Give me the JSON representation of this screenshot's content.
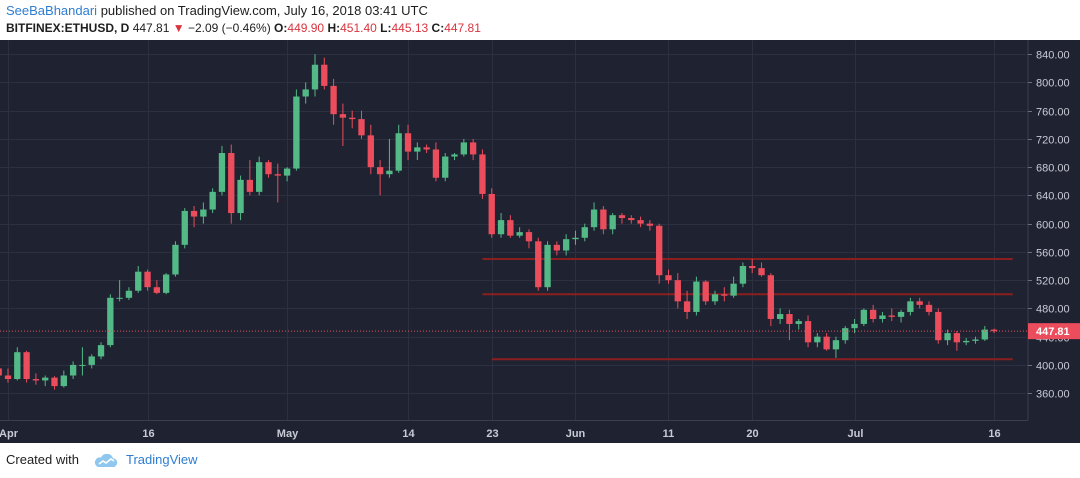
{
  "header": {
    "author": "SeeBaBhandari",
    "published_text": "published on TradingView.com, July 16, 2018 03:41 UTC",
    "symbol": "BITFINEX:ETHUSD, D",
    "last": "447.81",
    "change_arrow": "▼",
    "change": "−2.09 (−0.46%)",
    "o_label": "O:",
    "o_val": "449.90",
    "h_label": "H:",
    "h_val": "451.40",
    "l_label": "L:",
    "l_val": "445.13",
    "c_label": "C:",
    "c_val": "447.81"
  },
  "footer": {
    "created_with": "Created with",
    "brand": "TradingView",
    "logo_icon": "tradingview-cloud-icon"
  },
  "colors": {
    "background": "#1f2230",
    "grid": "#2c3040",
    "up": "#53b987",
    "down": "#eb4d5c",
    "level_line": "#8b1e1e",
    "price_tag": "#eb4d5c"
  },
  "chart_data": {
    "type": "candlestick",
    "y_ticks": [
      360,
      400,
      440,
      480,
      520,
      560,
      600,
      640,
      680,
      720,
      760,
      800,
      840
    ],
    "y_tick_labels": [
      "360.00",
      "400.00",
      "440.00",
      "480.00",
      "520.00",
      "560.00",
      "600.00",
      "640.00",
      "680.00",
      "720.00",
      "760.00",
      "800.00",
      "840.00"
    ],
    "ylim": [
      322,
      860
    ],
    "x_start": "2018-04-01",
    "x_end": "2018-07-19",
    "x_ticks": [
      {
        "date": "2018-04-01",
        "label": "Apr"
      },
      {
        "date": "2018-04-16",
        "label": "16"
      },
      {
        "date": "2018-05-01",
        "label": "May"
      },
      {
        "date": "2018-05-14",
        "label": "14"
      },
      {
        "date": "2018-05-23",
        "label": "23"
      },
      {
        "date": "2018-06-01",
        "label": "Jun"
      },
      {
        "date": "2018-06-11",
        "label": "11"
      },
      {
        "date": "2018-06-20",
        "label": "20"
      },
      {
        "date": "2018-07-01",
        "label": "Jul"
      },
      {
        "date": "2018-07-16",
        "label": "16"
      }
    ],
    "last_price": 447.81,
    "last_price_label": "447.81",
    "levels": [
      {
        "value": 550,
        "from": "2018-05-22",
        "to": "2018-07-18"
      },
      {
        "value": 500,
        "from": "2018-05-22",
        "to": "2018-07-18"
      },
      {
        "value": 408,
        "from": "2018-05-23",
        "to": "2018-07-18"
      }
    ],
    "candles": [
      {
        "d": "2018-03-31",
        "o": 395,
        "h": 410,
        "l": 380,
        "c": 385
      },
      {
        "d": "2018-04-01",
        "o": 385,
        "h": 395,
        "l": 375,
        "c": 380
      },
      {
        "d": "2018-04-02",
        "o": 380,
        "h": 425,
        "l": 378,
        "c": 418
      },
      {
        "d": "2018-04-03",
        "o": 418,
        "h": 420,
        "l": 375,
        "c": 380
      },
      {
        "d": "2018-04-04",
        "o": 380,
        "h": 388,
        "l": 372,
        "c": 378
      },
      {
        "d": "2018-04-05",
        "o": 378,
        "h": 385,
        "l": 370,
        "c": 382
      },
      {
        "d": "2018-04-06",
        "o": 382,
        "h": 384,
        "l": 365,
        "c": 370
      },
      {
        "d": "2018-04-07",
        "o": 370,
        "h": 392,
        "l": 368,
        "c": 385
      },
      {
        "d": "2018-04-08",
        "o": 385,
        "h": 405,
        "l": 380,
        "c": 400
      },
      {
        "d": "2018-04-09",
        "o": 400,
        "h": 425,
        "l": 385,
        "c": 400
      },
      {
        "d": "2018-04-10",
        "o": 400,
        "h": 415,
        "l": 395,
        "c": 412
      },
      {
        "d": "2018-04-11",
        "o": 412,
        "h": 432,
        "l": 408,
        "c": 428
      },
      {
        "d": "2018-04-12",
        "o": 428,
        "h": 500,
        "l": 425,
        "c": 495
      },
      {
        "d": "2018-04-13",
        "o": 495,
        "h": 520,
        "l": 490,
        "c": 495
      },
      {
        "d": "2018-04-14",
        "o": 495,
        "h": 510,
        "l": 492,
        "c": 505
      },
      {
        "d": "2018-04-15",
        "o": 505,
        "h": 540,
        "l": 502,
        "c": 532
      },
      {
        "d": "2018-04-16",
        "o": 532,
        "h": 535,
        "l": 505,
        "c": 510
      },
      {
        "d": "2018-04-17",
        "o": 510,
        "h": 520,
        "l": 500,
        "c": 502
      },
      {
        "d": "2018-04-18",
        "o": 502,
        "h": 530,
        "l": 500,
        "c": 528
      },
      {
        "d": "2018-04-19",
        "o": 528,
        "h": 575,
        "l": 525,
        "c": 570
      },
      {
        "d": "2018-04-20",
        "o": 570,
        "h": 622,
        "l": 565,
        "c": 618
      },
      {
        "d": "2018-04-21",
        "o": 618,
        "h": 625,
        "l": 595,
        "c": 610
      },
      {
        "d": "2018-04-22",
        "o": 610,
        "h": 630,
        "l": 600,
        "c": 620
      },
      {
        "d": "2018-04-23",
        "o": 620,
        "h": 650,
        "l": 615,
        "c": 645
      },
      {
        "d": "2018-04-24",
        "o": 645,
        "h": 710,
        "l": 640,
        "c": 700
      },
      {
        "d": "2018-04-25",
        "o": 700,
        "h": 712,
        "l": 600,
        "c": 615
      },
      {
        "d": "2018-04-26",
        "o": 615,
        "h": 668,
        "l": 605,
        "c": 662
      },
      {
        "d": "2018-04-27",
        "o": 662,
        "h": 690,
        "l": 640,
        "c": 645
      },
      {
        "d": "2018-04-28",
        "o": 645,
        "h": 695,
        "l": 640,
        "c": 687
      },
      {
        "d": "2018-04-29",
        "o": 687,
        "h": 690,
        "l": 665,
        "c": 670
      },
      {
        "d": "2018-04-30",
        "o": 670,
        "h": 685,
        "l": 630,
        "c": 668
      },
      {
        "d": "2018-05-01",
        "o": 668,
        "h": 680,
        "l": 660,
        "c": 678
      },
      {
        "d": "2018-05-02",
        "o": 678,
        "h": 790,
        "l": 675,
        "c": 780
      },
      {
        "d": "2018-05-03",
        "o": 780,
        "h": 800,
        "l": 770,
        "c": 790
      },
      {
        "d": "2018-05-04",
        "o": 790,
        "h": 840,
        "l": 780,
        "c": 825
      },
      {
        "d": "2018-05-05",
        "o": 825,
        "h": 835,
        "l": 790,
        "c": 795
      },
      {
        "d": "2018-05-06",
        "o": 795,
        "h": 805,
        "l": 740,
        "c": 755
      },
      {
        "d": "2018-05-07",
        "o": 755,
        "h": 770,
        "l": 710,
        "c": 750
      },
      {
        "d": "2018-05-08",
        "o": 750,
        "h": 760,
        "l": 735,
        "c": 748
      },
      {
        "d": "2018-05-09",
        "o": 748,
        "h": 760,
        "l": 720,
        "c": 725
      },
      {
        "d": "2018-05-10",
        "o": 725,
        "h": 740,
        "l": 670,
        "c": 680
      },
      {
        "d": "2018-05-11",
        "o": 680,
        "h": 690,
        "l": 640,
        "c": 670
      },
      {
        "d": "2018-05-12",
        "o": 670,
        "h": 720,
        "l": 665,
        "c": 675
      },
      {
        "d": "2018-05-13",
        "o": 675,
        "h": 740,
        "l": 672,
        "c": 728
      },
      {
        "d": "2018-05-14",
        "o": 728,
        "h": 740,
        "l": 690,
        "c": 702
      },
      {
        "d": "2018-05-15",
        "o": 702,
        "h": 715,
        "l": 690,
        "c": 708
      },
      {
        "d": "2018-05-16",
        "o": 708,
        "h": 712,
        "l": 700,
        "c": 705
      },
      {
        "d": "2018-05-17",
        "o": 705,
        "h": 715,
        "l": 660,
        "c": 665
      },
      {
        "d": "2018-05-18",
        "o": 665,
        "h": 700,
        "l": 660,
        "c": 695
      },
      {
        "d": "2018-05-19",
        "o": 695,
        "h": 700,
        "l": 690,
        "c": 698
      },
      {
        "d": "2018-05-20",
        "o": 698,
        "h": 720,
        "l": 695,
        "c": 715
      },
      {
        "d": "2018-05-21",
        "o": 715,
        "h": 720,
        "l": 690,
        "c": 698
      },
      {
        "d": "2018-05-22",
        "o": 698,
        "h": 705,
        "l": 635,
        "c": 642
      },
      {
        "d": "2018-05-23",
        "o": 642,
        "h": 650,
        "l": 580,
        "c": 585
      },
      {
        "d": "2018-05-24",
        "o": 585,
        "h": 615,
        "l": 580,
        "c": 605
      },
      {
        "d": "2018-05-25",
        "o": 605,
        "h": 612,
        "l": 580,
        "c": 583
      },
      {
        "d": "2018-05-26",
        "o": 583,
        "h": 595,
        "l": 580,
        "c": 588
      },
      {
        "d": "2018-05-27",
        "o": 588,
        "h": 592,
        "l": 565,
        "c": 575
      },
      {
        "d": "2018-05-28",
        "o": 575,
        "h": 580,
        "l": 505,
        "c": 510
      },
      {
        "d": "2018-05-29",
        "o": 510,
        "h": 575,
        "l": 505,
        "c": 570
      },
      {
        "d": "2018-05-30",
        "o": 570,
        "h": 575,
        "l": 555,
        "c": 562
      },
      {
        "d": "2018-05-31",
        "o": 562,
        "h": 585,
        "l": 555,
        "c": 578
      },
      {
        "d": "2018-06-01",
        "o": 578,
        "h": 590,
        "l": 570,
        "c": 580
      },
      {
        "d": "2018-06-02",
        "o": 580,
        "h": 600,
        "l": 575,
        "c": 595
      },
      {
        "d": "2018-06-03",
        "o": 595,
        "h": 630,
        "l": 590,
        "c": 620
      },
      {
        "d": "2018-06-04",
        "o": 620,
        "h": 625,
        "l": 585,
        "c": 592
      },
      {
        "d": "2018-06-05",
        "o": 592,
        "h": 615,
        "l": 585,
        "c": 612
      },
      {
        "d": "2018-06-06",
        "o": 612,
        "h": 615,
        "l": 600,
        "c": 608
      },
      {
        "d": "2018-06-07",
        "o": 608,
        "h": 612,
        "l": 600,
        "c": 605
      },
      {
        "d": "2018-06-08",
        "o": 605,
        "h": 610,
        "l": 595,
        "c": 600
      },
      {
        "d": "2018-06-09",
        "o": 600,
        "h": 605,
        "l": 590,
        "c": 597
      },
      {
        "d": "2018-06-10",
        "o": 597,
        "h": 600,
        "l": 515,
        "c": 527
      },
      {
        "d": "2018-06-11",
        "o": 527,
        "h": 535,
        "l": 515,
        "c": 520
      },
      {
        "d": "2018-06-12",
        "o": 520,
        "h": 530,
        "l": 480,
        "c": 490
      },
      {
        "d": "2018-06-13",
        "o": 490,
        "h": 505,
        "l": 465,
        "c": 475
      },
      {
        "d": "2018-06-14",
        "o": 475,
        "h": 525,
        "l": 470,
        "c": 518
      },
      {
        "d": "2018-06-15",
        "o": 518,
        "h": 520,
        "l": 485,
        "c": 490
      },
      {
        "d": "2018-06-16",
        "o": 490,
        "h": 505,
        "l": 485,
        "c": 500
      },
      {
        "d": "2018-06-17",
        "o": 500,
        "h": 510,
        "l": 490,
        "c": 498
      },
      {
        "d": "2018-06-18",
        "o": 498,
        "h": 525,
        "l": 495,
        "c": 515
      },
      {
        "d": "2018-06-19",
        "o": 515,
        "h": 545,
        "l": 510,
        "c": 540
      },
      {
        "d": "2018-06-20",
        "o": 540,
        "h": 550,
        "l": 530,
        "c": 537
      },
      {
        "d": "2018-06-21",
        "o": 537,
        "h": 545,
        "l": 525,
        "c": 527
      },
      {
        "d": "2018-06-22",
        "o": 527,
        "h": 530,
        "l": 455,
        "c": 465
      },
      {
        "d": "2018-06-23",
        "o": 465,
        "h": 480,
        "l": 458,
        "c": 472
      },
      {
        "d": "2018-06-24",
        "o": 472,
        "h": 478,
        "l": 435,
        "c": 458
      },
      {
        "d": "2018-06-25",
        "o": 458,
        "h": 465,
        "l": 450,
        "c": 462
      },
      {
        "d": "2018-06-26",
        "o": 462,
        "h": 470,
        "l": 425,
        "c": 432
      },
      {
        "d": "2018-06-27",
        "o": 432,
        "h": 445,
        "l": 425,
        "c": 440
      },
      {
        "d": "2018-06-28",
        "o": 440,
        "h": 445,
        "l": 420,
        "c": 422
      },
      {
        "d": "2018-06-29",
        "o": 422,
        "h": 440,
        "l": 410,
        "c": 435
      },
      {
        "d": "2018-06-30",
        "o": 435,
        "h": 455,
        "l": 430,
        "c": 452
      },
      {
        "d": "2018-07-01",
        "o": 452,
        "h": 465,
        "l": 445,
        "c": 458
      },
      {
        "d": "2018-07-02",
        "o": 458,
        "h": 480,
        "l": 455,
        "c": 478
      },
      {
        "d": "2018-07-03",
        "o": 478,
        "h": 485,
        "l": 460,
        "c": 465
      },
      {
        "d": "2018-07-04",
        "o": 465,
        "h": 475,
        "l": 460,
        "c": 470
      },
      {
        "d": "2018-07-05",
        "o": 470,
        "h": 480,
        "l": 462,
        "c": 468
      },
      {
        "d": "2018-07-06",
        "o": 468,
        "h": 478,
        "l": 460,
        "c": 475
      },
      {
        "d": "2018-07-07",
        "o": 475,
        "h": 495,
        "l": 470,
        "c": 490
      },
      {
        "d": "2018-07-08",
        "o": 490,
        "h": 495,
        "l": 480,
        "c": 485
      },
      {
        "d": "2018-07-09",
        "o": 485,
        "h": 490,
        "l": 470,
        "c": 475
      },
      {
        "d": "2018-07-10",
        "o": 475,
        "h": 480,
        "l": 430,
        "c": 435
      },
      {
        "d": "2018-07-11",
        "o": 435,
        "h": 450,
        "l": 428,
        "c": 445
      },
      {
        "d": "2018-07-12",
        "o": 445,
        "h": 448,
        "l": 420,
        "c": 432
      },
      {
        "d": "2018-07-13",
        "o": 432,
        "h": 438,
        "l": 428,
        "c": 434
      },
      {
        "d": "2018-07-14",
        "o": 434,
        "h": 440,
        "l": 430,
        "c": 436
      },
      {
        "d": "2018-07-15",
        "o": 436,
        "h": 455,
        "l": 434,
        "c": 450
      },
      {
        "d": "2018-07-16",
        "o": 449.9,
        "h": 451.4,
        "l": 445.13,
        "c": 447.81
      }
    ]
  }
}
